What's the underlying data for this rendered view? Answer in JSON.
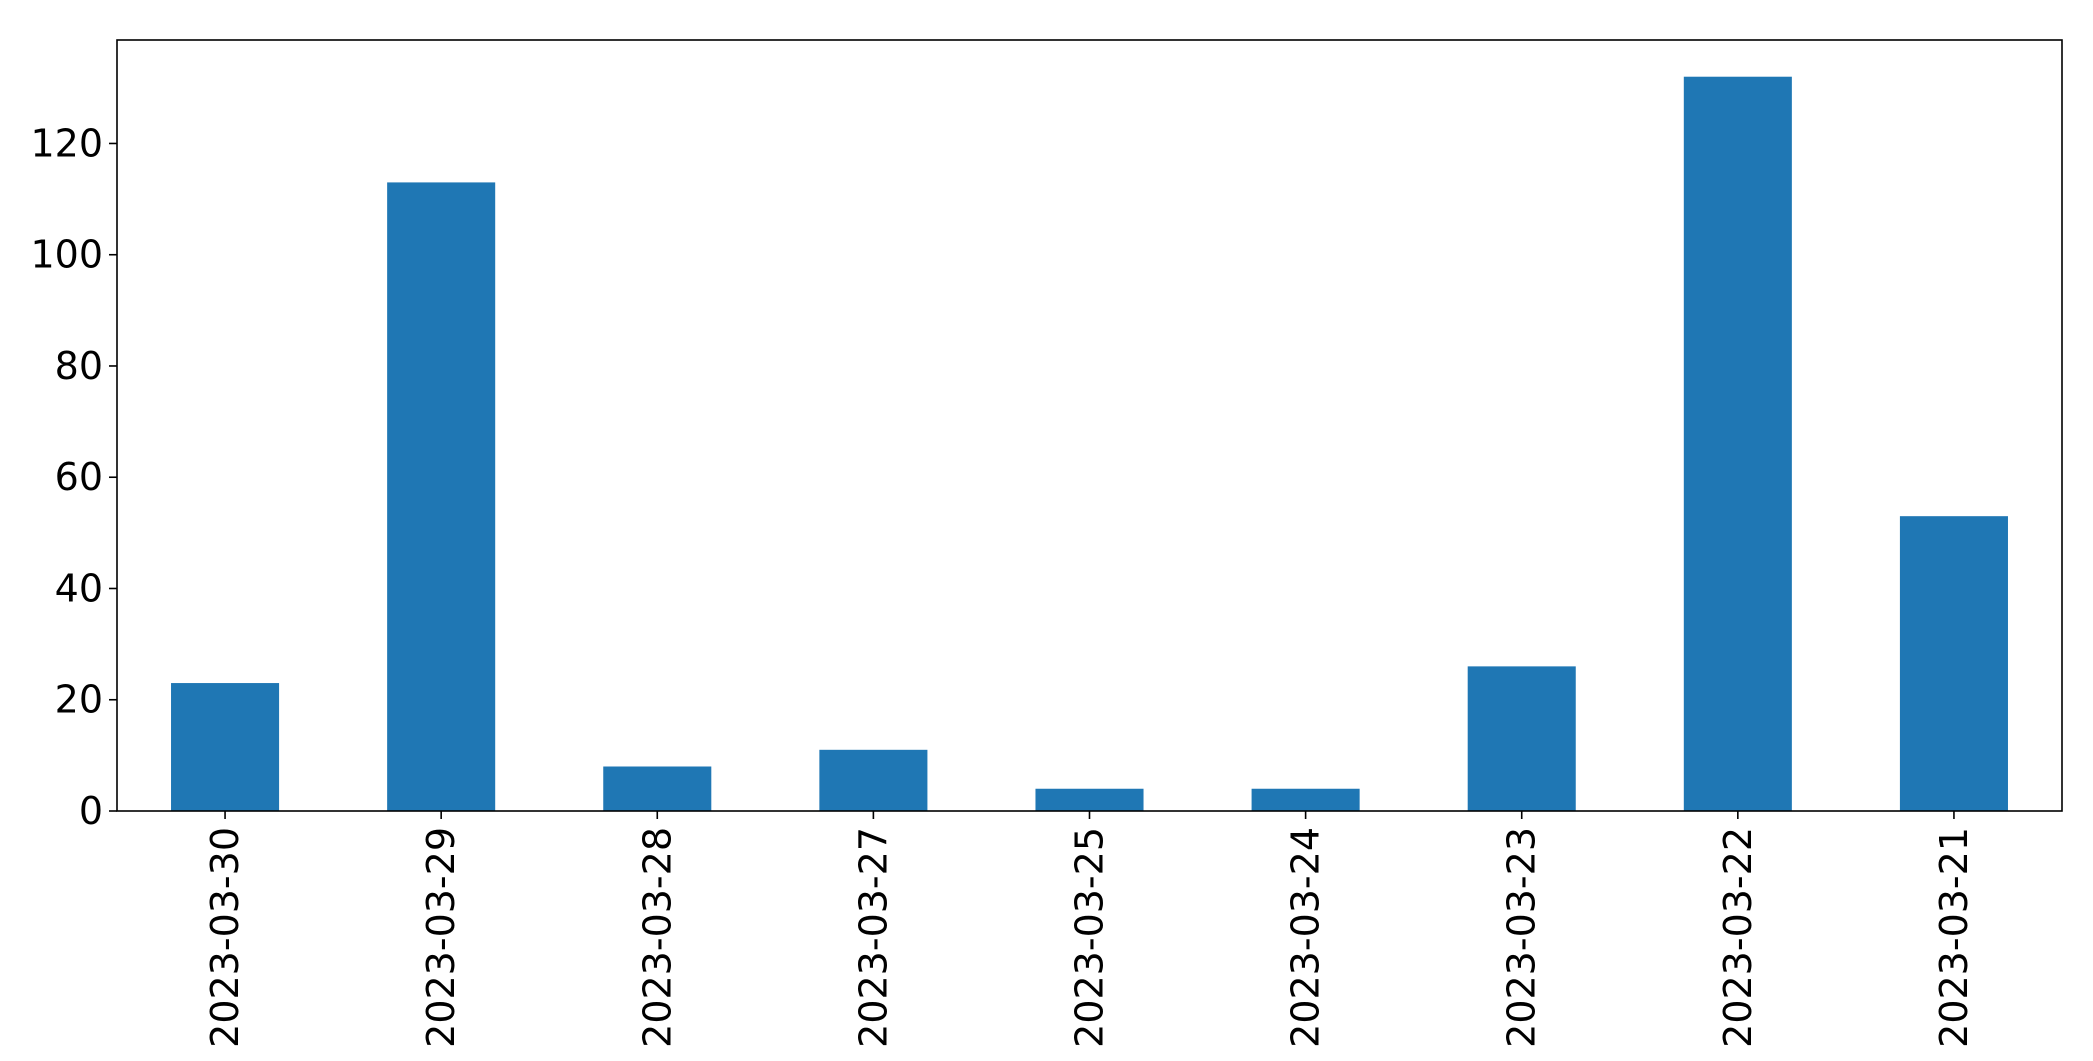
{
  "chart_data": {
    "type": "bar",
    "categories": [
      "2023-03-30",
      "2023-03-29",
      "2023-03-28",
      "2023-03-27",
      "2023-03-25",
      "2023-03-24",
      "2023-03-23",
      "2023-03-22",
      "2023-03-21"
    ],
    "values": [
      23,
      113,
      8,
      11,
      4,
      4,
      26,
      132,
      53
    ],
    "ylim": [
      0,
      138.6
    ],
    "yticks": [
      0,
      20,
      40,
      60,
      80,
      100,
      120
    ],
    "bar_color": "#1f77b4",
    "grid": false,
    "legend": false
  }
}
